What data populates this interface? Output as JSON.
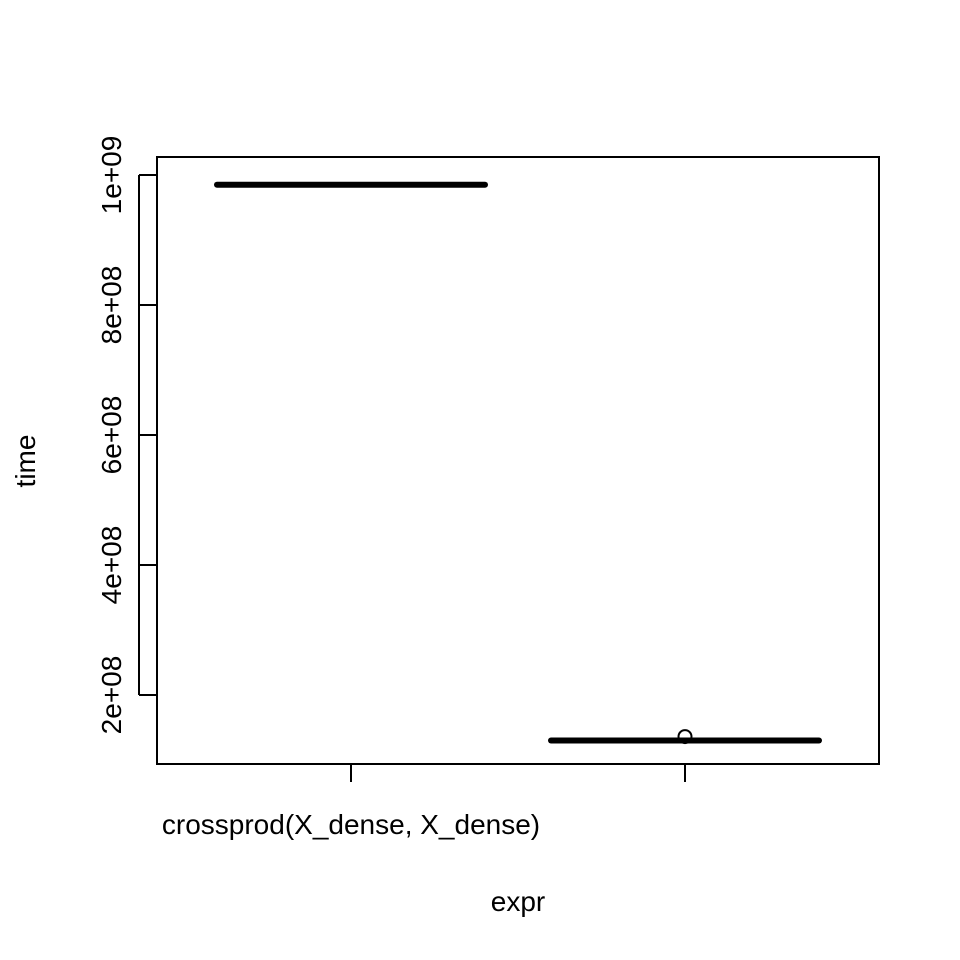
{
  "chart_data": {
    "type": "boxplot",
    "xlabel": "expr",
    "ylabel": "time",
    "ylim": [
      90000000,
      1020000000
    ],
    "y_ticks": [
      200000000,
      400000000,
      600000000,
      800000000,
      1000000000
    ],
    "y_tick_labels": [
      "2e+08",
      "4e+08",
      "6e+08",
      "8e+08",
      "1e+09"
    ],
    "categories": [
      "crossprod(X_dense, X_dense)",
      ""
    ],
    "boxes": [
      {
        "category": "crossprod(X_dense, X_dense)",
        "whisker_low": 983000000,
        "q1": 983000000,
        "median": 985000000,
        "q3": 987000000,
        "whisker_high": 987000000,
        "outliers": []
      },
      {
        "category": "",
        "whisker_low": 129000000,
        "q1": 129000000,
        "median": 130000000,
        "q3": 130000000,
        "whisker_high": 130000000,
        "outliers": [
          136000000
        ]
      }
    ],
    "grid": false,
    "legend": "none"
  }
}
